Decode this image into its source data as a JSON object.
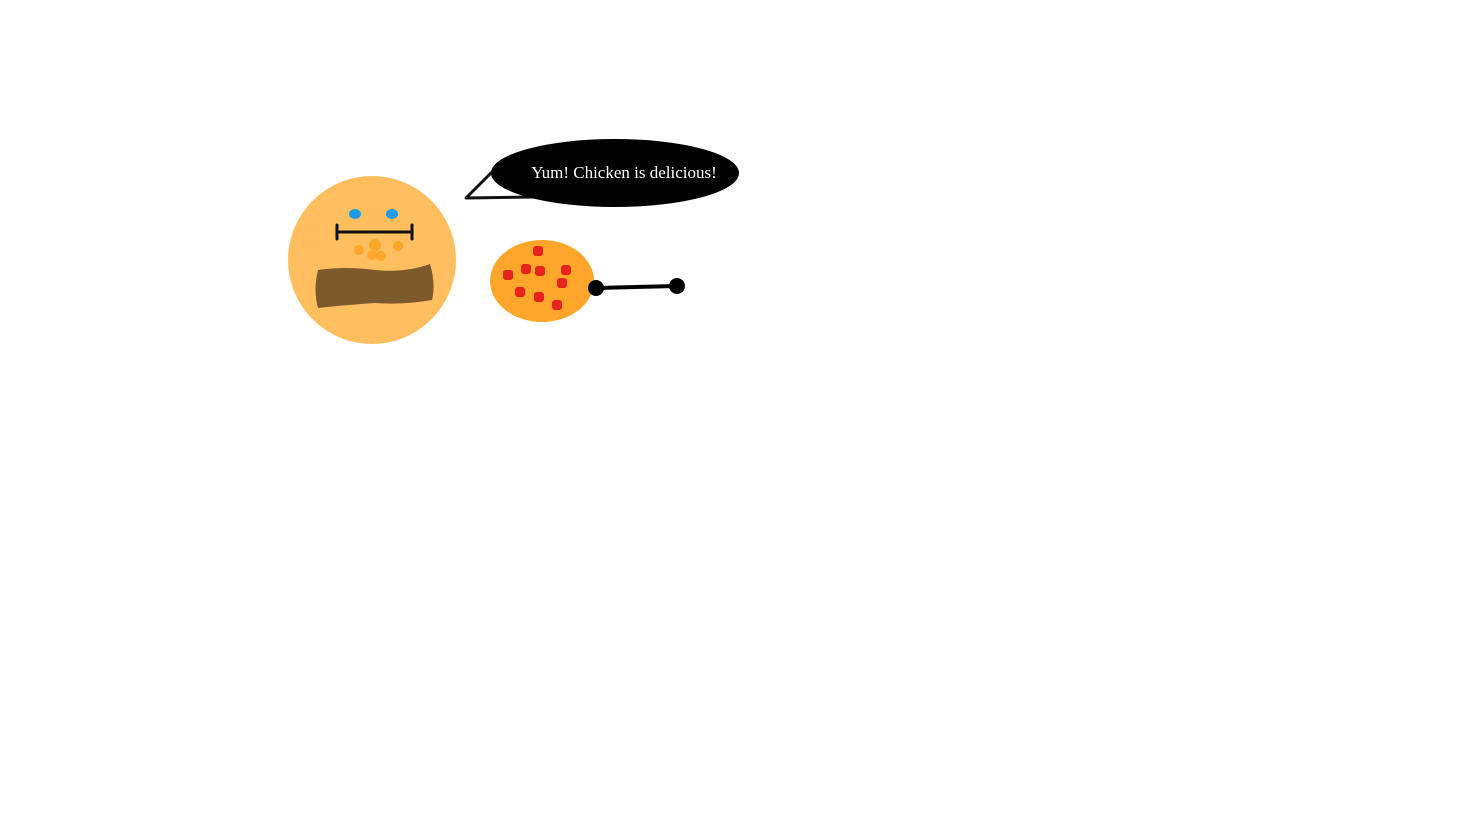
{
  "speech_bubble": {
    "text": "Yum! Chicken is delicious!"
  },
  "colors": {
    "background": "#ffffff",
    "face": "#ffbf5e",
    "face_spots": "#ffa62b",
    "eyes": "#1a9be8",
    "mustache": "#7d5a2c",
    "outline": "#111111",
    "bubble": "#000000",
    "bubble_text": "#ffffff",
    "drumstick_meat": "#ffa62b",
    "drumstick_spots": "#e8221c",
    "drumstick_bone": "#000000"
  },
  "icons": {
    "character": "cartoon-face-icon",
    "food": "chicken-drumstick-icon"
  }
}
